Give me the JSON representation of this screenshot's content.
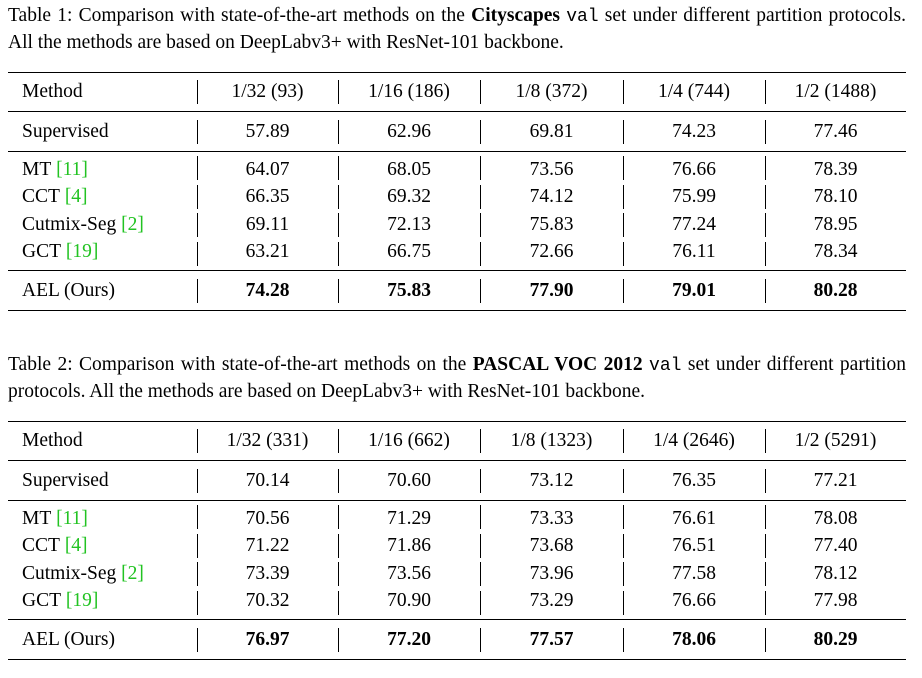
{
  "tables": [
    {
      "caption": [
        {
          "text": "Table 1: Comparison with state-of-the-art methods on the "
        },
        {
          "text": "Cityscapes ",
          "style": "bold"
        },
        {
          "text": "val",
          "style": "mono"
        },
        {
          "text": " set under different partition protocols. All the methods are based on DeepLabv3+ with ResNet-101 backbone."
        }
      ],
      "header": [
        "Method",
        "1/32 (93)",
        "1/16 (186)",
        "1/8 (372)",
        "1/4 (744)",
        "1/2 (1488)"
      ],
      "groups": [
        [
          {
            "method": "Supervised",
            "values": [
              "57.89",
              "62.96",
              "69.81",
              "74.23",
              "77.46"
            ]
          }
        ],
        [
          {
            "method": "MT",
            "cite": "[11]",
            "values": [
              "64.07",
              "68.05",
              "73.56",
              "76.66",
              "78.39"
            ]
          },
          {
            "method": "CCT",
            "cite": "[4]",
            "values": [
              "66.35",
              "69.32",
              "74.12",
              "75.99",
              "78.10"
            ]
          },
          {
            "method": "Cutmix-Seg",
            "cite": "[2]",
            "values": [
              "69.11",
              "72.13",
              "75.83",
              "77.24",
              "78.95"
            ]
          },
          {
            "method": "GCT",
            "cite": "[19]",
            "values": [
              "63.21",
              "66.75",
              "72.66",
              "76.11",
              "78.34"
            ]
          }
        ],
        [
          {
            "method": "AEL (Ours)",
            "values": [
              "74.28",
              "75.83",
              "77.90",
              "79.01",
              "80.28"
            ],
            "bold": true
          }
        ]
      ]
    },
    {
      "caption": [
        {
          "text": "Table 2: Comparison with state-of-the-art methods on the "
        },
        {
          "text": "PASCAL VOC 2012 ",
          "style": "bold"
        },
        {
          "text": "val",
          "style": "mono"
        },
        {
          "text": " set under different partition protocols. All the methods are based on DeepLabv3+ with ResNet-101 backbone."
        }
      ],
      "header": [
        "Method",
        "1/32 (331)",
        "1/16 (662)",
        "1/8 (1323)",
        "1/4 (2646)",
        "1/2 (5291)"
      ],
      "groups": [
        [
          {
            "method": "Supervised",
            "values": [
              "70.14",
              "70.60",
              "73.12",
              "76.35",
              "77.21"
            ]
          }
        ],
        [
          {
            "method": "MT",
            "cite": "[11]",
            "values": [
              "70.56",
              "71.29",
              "73.33",
              "76.61",
              "78.08"
            ]
          },
          {
            "method": "CCT",
            "cite": "[4]",
            "values": [
              "71.22",
              "71.86",
              "73.68",
              "76.51",
              "77.40"
            ]
          },
          {
            "method": "Cutmix-Seg",
            "cite": "[2]",
            "values": [
              "73.39",
              "73.56",
              "73.96",
              "77.58",
              "78.12"
            ]
          },
          {
            "method": "GCT",
            "cite": "[19]",
            "values": [
              "70.32",
              "70.90",
              "73.29",
              "76.66",
              "77.98"
            ]
          }
        ],
        [
          {
            "method": "AEL (Ours)",
            "values": [
              "76.97",
              "77.20",
              "77.57",
              "78.06",
              "80.29"
            ],
            "bold": true
          }
        ]
      ]
    }
  ]
}
